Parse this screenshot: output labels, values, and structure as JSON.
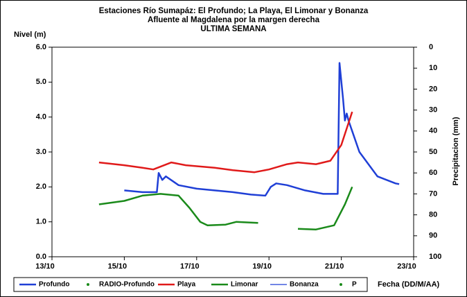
{
  "chart_data": {
    "type": "line",
    "title": [
      "Estaciones Río Sumapáz: El Profundo; La Playa, El Limonar y Bonanza",
      "Afluente al Magdalena por la margen derecha",
      "ULTIMA SEMANA"
    ],
    "y_label": "Nivel (m)",
    "y2_label": "Precipitacion (mm)",
    "x_label": "Fecha (DD/M/AA)",
    "xlim": [
      13,
      23
    ],
    "xticks": [
      {
        "value": 13,
        "label": "13/10"
      },
      {
        "value": 15,
        "label": "15/10"
      },
      {
        "value": 17,
        "label": "17/10"
      },
      {
        "value": 19,
        "label": "19/10"
      },
      {
        "value": 21,
        "label": "21/10"
      },
      {
        "value": 23,
        "label": "23/10"
      }
    ],
    "ylim": [
      0,
      6
    ],
    "yticks": [
      {
        "value": 0,
        "label": "0.0"
      },
      {
        "value": 1,
        "label": "1.0"
      },
      {
        "value": 2,
        "label": "2.0"
      },
      {
        "value": 3,
        "label": "3.0"
      },
      {
        "value": 4,
        "label": "4.0"
      },
      {
        "value": 5,
        "label": "5.0"
      },
      {
        "value": 6,
        "label": "6.0"
      }
    ],
    "y2lim": [
      100,
      0
    ],
    "y2ticks": [
      0,
      10,
      20,
      30,
      40,
      50,
      60,
      70,
      80,
      90,
      100
    ],
    "series": [
      {
        "name": "Profundo",
        "color": "#1f3fd6",
        "style": "thick-line",
        "x": [
          15.0,
          15.5,
          15.9,
          15.95,
          16.05,
          16.15,
          16.5,
          17.0,
          17.5,
          18.0,
          18.5,
          18.9,
          19.05,
          19.2,
          19.5,
          20.0,
          20.5,
          20.9,
          20.95,
          21.05,
          21.1,
          21.15,
          21.2,
          21.5,
          22.0,
          22.5,
          22.6
        ],
        "values": [
          1.9,
          1.85,
          1.85,
          2.4,
          2.2,
          2.3,
          2.05,
          1.95,
          1.9,
          1.85,
          1.78,
          1.75,
          2.0,
          2.1,
          2.05,
          1.9,
          1.8,
          1.8,
          5.55,
          4.5,
          3.9,
          4.1,
          3.9,
          3.0,
          2.3,
          2.1,
          2.08
        ]
      },
      {
        "name": "RADIO-Profundo",
        "color": "#1a8a1a",
        "style": "marker",
        "x": [],
        "values": []
      },
      {
        "name": "Playa",
        "color": "#e01a1a",
        "style": "line",
        "x": [
          14.3,
          15.0,
          15.5,
          15.8,
          16.3,
          16.7,
          17.5,
          18.0,
          18.6,
          19.0,
          19.5,
          19.8,
          20.3,
          20.7,
          21.0,
          21.3
        ],
        "values": [
          2.7,
          2.62,
          2.55,
          2.5,
          2.7,
          2.62,
          2.55,
          2.48,
          2.42,
          2.5,
          2.65,
          2.7,
          2.65,
          2.75,
          3.2,
          4.15
        ]
      },
      {
        "name": "Limonar",
        "color": "#1a8a1a",
        "style": "line",
        "x": [
          14.3,
          15.0,
          15.5,
          16.0,
          16.5,
          16.8,
          17.1,
          17.3,
          17.8,
          18.1,
          18.7,
          19.2,
          19.8,
          20.3,
          20.8,
          21.1,
          21.3
        ],
        "values": [
          1.5,
          1.6,
          1.75,
          1.8,
          1.75,
          1.4,
          1.0,
          0.9,
          0.92,
          1.0,
          0.97,
          null,
          0.8,
          0.78,
          0.9,
          1.5,
          2.0
        ]
      },
      {
        "name": "Bonanza",
        "color": "#1f3fd6",
        "style": "thin-line",
        "x": [],
        "values": []
      },
      {
        "name": "P",
        "color": "#1a8a1a",
        "style": "marker",
        "x": [],
        "values": []
      }
    ]
  }
}
